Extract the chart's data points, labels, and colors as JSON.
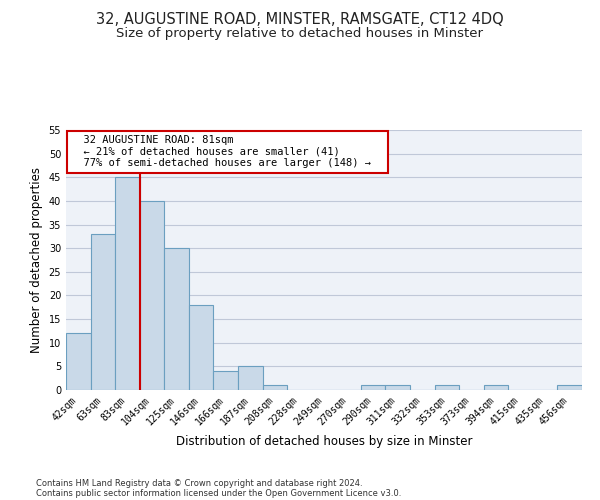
{
  "title1": "32, AUGUSTINE ROAD, MINSTER, RAMSGATE, CT12 4DQ",
  "title2": "Size of property relative to detached houses in Minster",
  "xlabel": "Distribution of detached houses by size in Minster",
  "ylabel": "Number of detached properties",
  "bar_labels": [
    "42sqm",
    "63sqm",
    "83sqm",
    "104sqm",
    "125sqm",
    "146sqm",
    "166sqm",
    "187sqm",
    "208sqm",
    "228sqm",
    "249sqm",
    "270sqm",
    "290sqm",
    "311sqm",
    "332sqm",
    "353sqm",
    "373sqm",
    "394sqm",
    "415sqm",
    "435sqm",
    "456sqm"
  ],
  "bar_values": [
    12,
    33,
    45,
    40,
    30,
    18,
    4,
    5,
    1,
    0,
    0,
    0,
    1,
    1,
    0,
    1,
    0,
    1,
    0,
    0,
    1
  ],
  "bar_color": "#c9d9e8",
  "bar_edge_color": "#6b9fc0",
  "red_line_index": 2,
  "annotation_text": "  32 AUGUSTINE ROAD: 81sqm  \n  ← 21% of detached houses are smaller (41)  \n  77% of semi-detached houses are larger (148) →  ",
  "annotation_box_color": "#ffffff",
  "annotation_box_edge": "#cc0000",
  "red_line_color": "#cc0000",
  "ylim": [
    0,
    55
  ],
  "yticks": [
    0,
    5,
    10,
    15,
    20,
    25,
    30,
    35,
    40,
    45,
    50,
    55
  ],
  "grid_color": "#c0c8d8",
  "footer1": "Contains HM Land Registry data © Crown copyright and database right 2024.",
  "footer2": "Contains public sector information licensed under the Open Government Licence v3.0.",
  "bg_color": "#eef2f8",
  "title1_fontsize": 10.5,
  "title2_fontsize": 9.5,
  "tick_fontsize": 7,
  "ylabel_fontsize": 8.5,
  "xlabel_fontsize": 8.5,
  "footer_fontsize": 6.0
}
